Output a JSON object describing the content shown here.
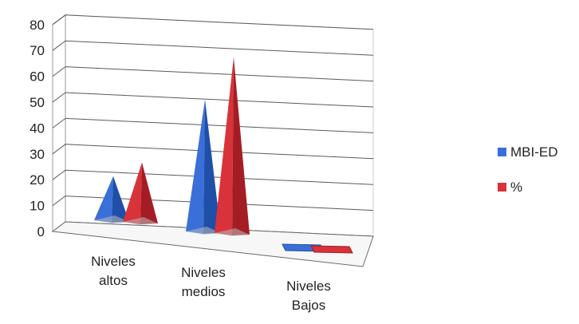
{
  "chart_data": {
    "type": "bar",
    "style": "3d-pyramid",
    "categories": [
      [
        "Niveles",
        "altos"
      ],
      [
        "Niveles",
        "medios"
      ],
      [
        "Niveles",
        "Bajos"
      ]
    ],
    "series": [
      {
        "name": "MBI-ED",
        "color": "#3a6fd8",
        "shade": "#1f4fa8",
        "values": [
          17,
          51,
          0
        ]
      },
      {
        "name": "%",
        "color": "#d8323a",
        "shade": "#a51d24",
        "values": [
          23,
          68,
          0
        ]
      }
    ],
    "yticks": [
      "0",
      "10",
      "20",
      "30",
      "40",
      "50",
      "60",
      "70",
      "80"
    ],
    "ylim": [
      0,
      80
    ],
    "grid": true,
    "legend_position": "right"
  }
}
